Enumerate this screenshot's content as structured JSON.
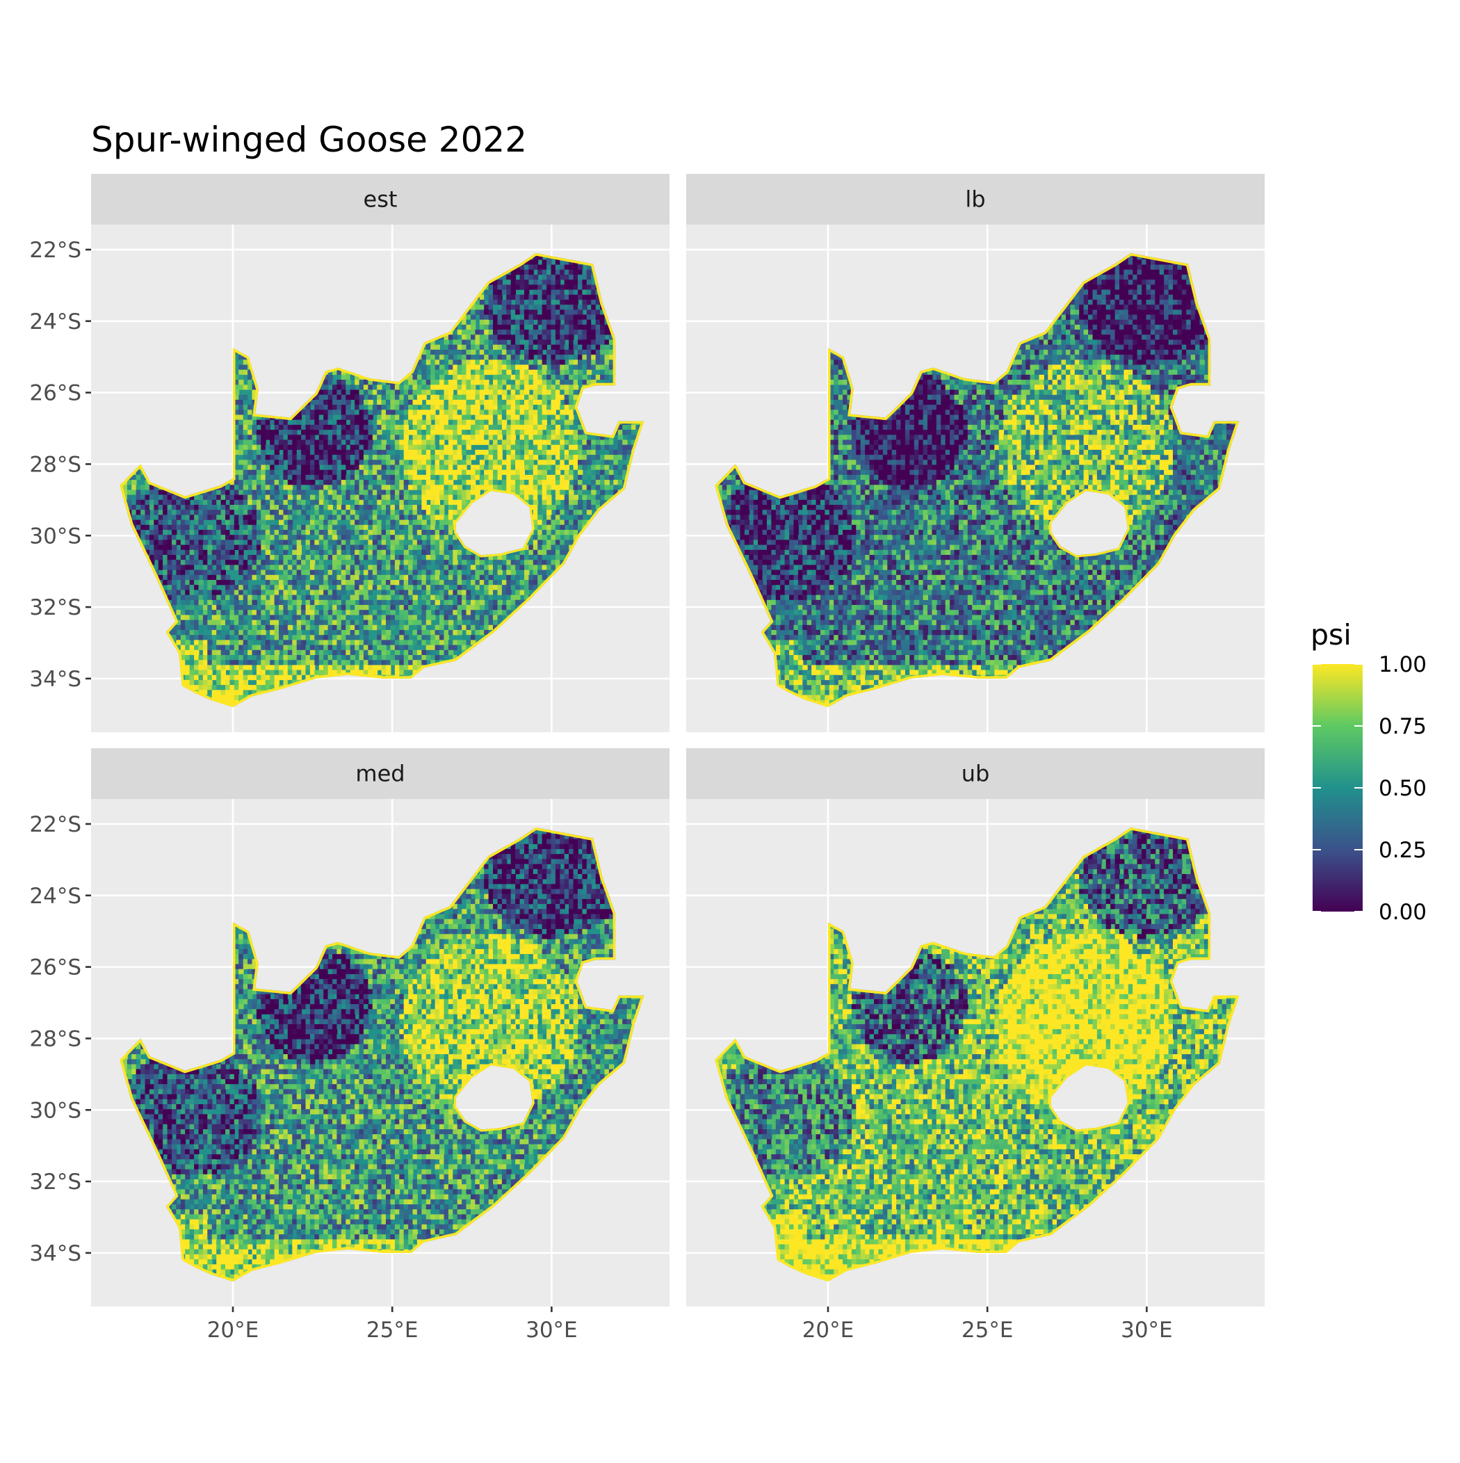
{
  "chart_data": {
    "type": "heatmap",
    "title": "Spur-winged Goose 2022",
    "xlabel": "",
    "ylabel": "",
    "facets": [
      {
        "label": "est",
        "level": 0.52
      },
      {
        "label": "lb",
        "level": 0.38
      },
      {
        "label": "med",
        "level": 0.5
      },
      {
        "label": "ub",
        "level": 0.68
      }
    ],
    "x_ticks": [
      {
        "value": 20,
        "label": "20°E"
      },
      {
        "value": 25,
        "label": "25°E"
      },
      {
        "value": 30,
        "label": "30°E"
      }
    ],
    "y_ticks": [
      {
        "value": -22,
        "label": "22°S"
      },
      {
        "value": -24,
        "label": "24°S"
      },
      {
        "value": -26,
        "label": "26°S"
      },
      {
        "value": -28,
        "label": "28°S"
      },
      {
        "value": -30,
        "label": "30°S"
      },
      {
        "value": -32,
        "label": "32°S"
      },
      {
        "value": -34,
        "label": "34°S"
      }
    ],
    "xlim": [
      15.55,
      33.7
    ],
    "ylim": [
      -35.5,
      -21.3
    ],
    "grid": true,
    "legend": {
      "title": "psi",
      "position": "right",
      "range": [
        0,
        1
      ],
      "breaks": [
        {
          "value": 1.0,
          "label": "1.00"
        },
        {
          "value": 0.75,
          "label": "0.75"
        },
        {
          "value": 0.5,
          "label": "0.50"
        },
        {
          "value": 0.25,
          "label": "0.25"
        },
        {
          "value": 0.0,
          "label": "0.00"
        }
      ],
      "colors": [
        "#440154",
        "#3b528b",
        "#21918c",
        "#5ec962",
        "#fde725"
      ]
    }
  }
}
